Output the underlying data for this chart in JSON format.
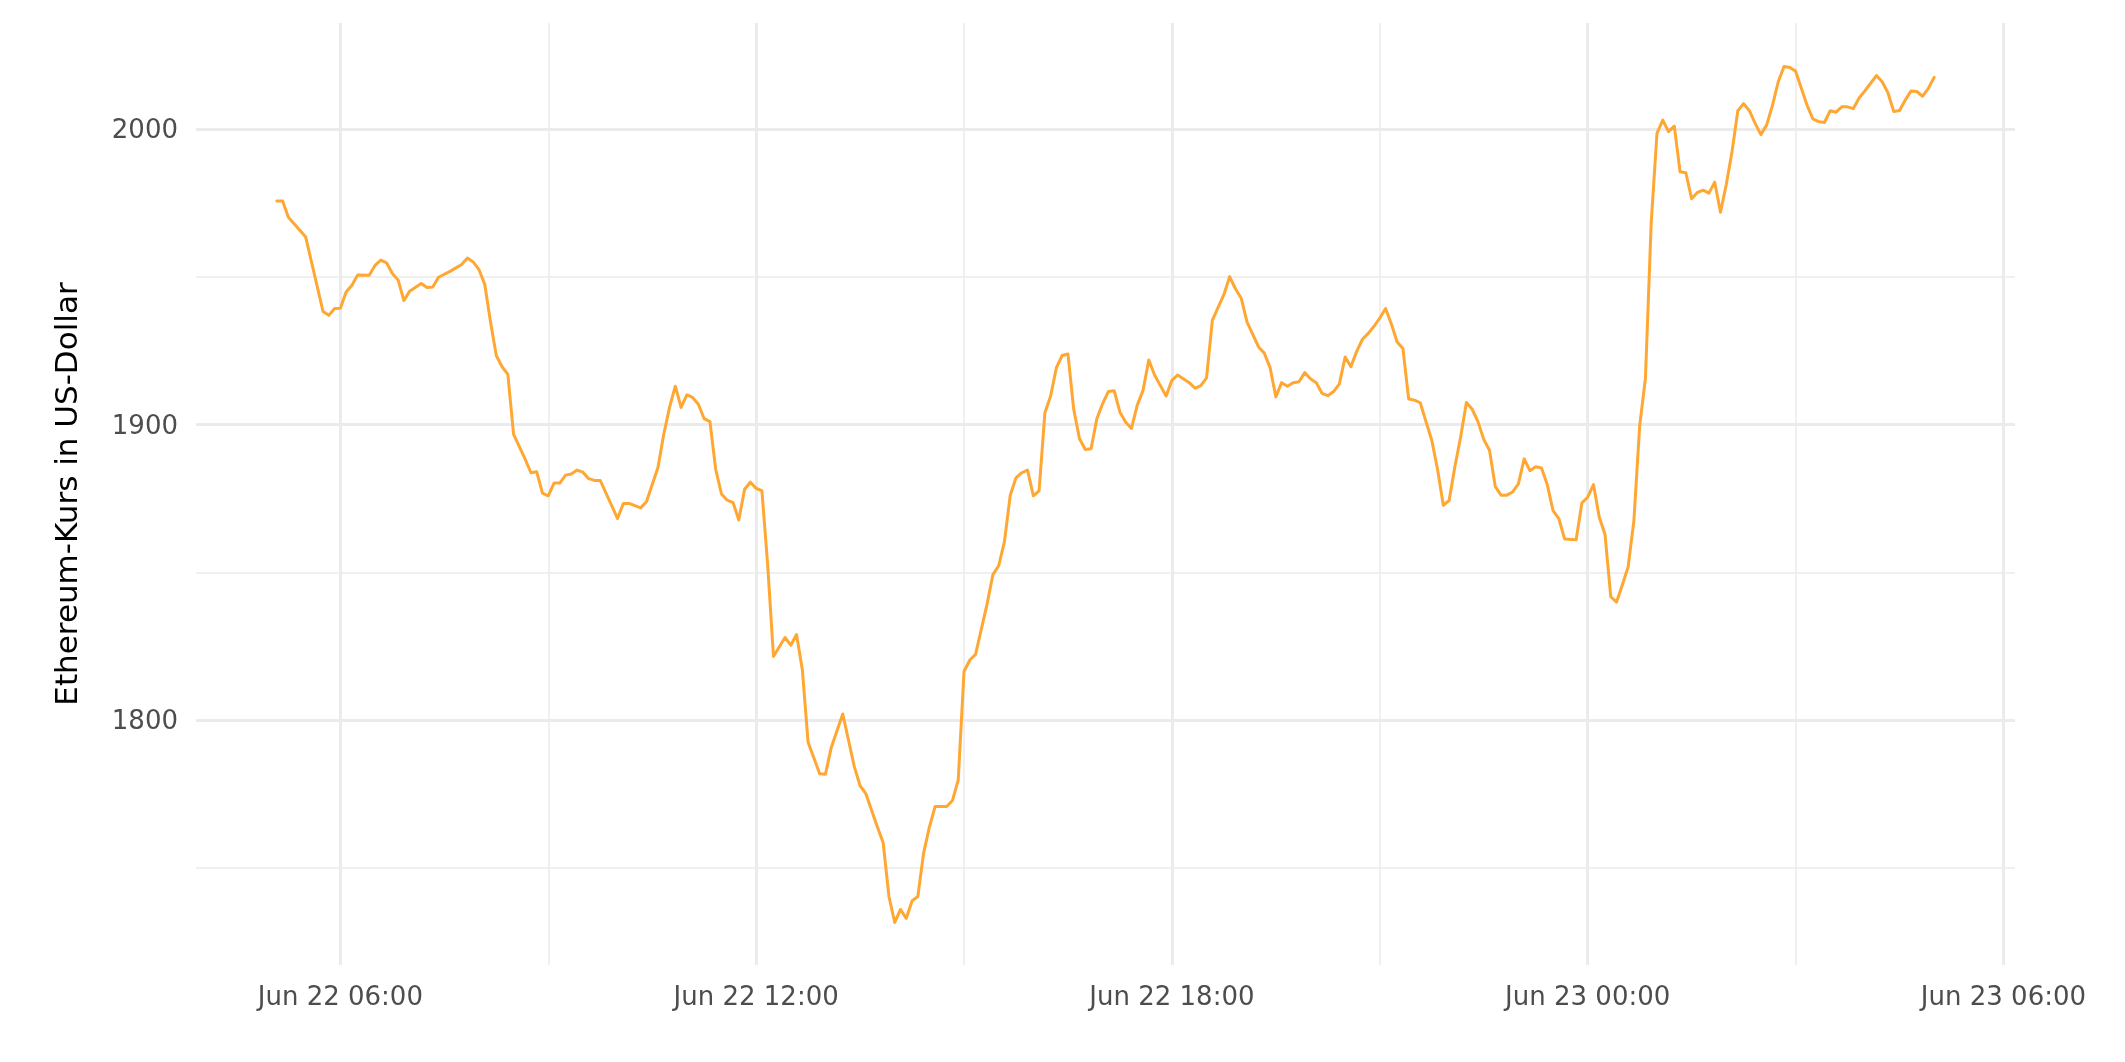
{
  "chart_data": {
    "type": "line",
    "ylabel": "Ethereum-Kurs in US-Dollar",
    "xlim": [
      "--06-22T03:55",
      "--06-23T06:10"
    ],
    "xticks": [
      {
        "value": "--06-22T06:00",
        "label": "Jun 22 06:00"
      },
      {
        "value": "--06-22T09:00",
        "label": null
      },
      {
        "value": "--06-22T12:00",
        "label": "Jun 22 12:00"
      },
      {
        "value": "--06-22T15:00",
        "label": null
      },
      {
        "value": "--06-22T18:00",
        "label": "Jun 22 18:00"
      },
      {
        "value": "--06-22T21:00",
        "label": null
      },
      {
        "value": "--06-23T00:00",
        "label": "Jun 23 00:00"
      },
      {
        "value": "--06-23T03:00",
        "label": null
      },
      {
        "value": "--06-23T06:00",
        "label": "Jun 23 06:00"
      }
    ],
    "ylim": [
      1717,
      2036
    ],
    "yticks": [
      {
        "value": 1750,
        "label": null
      },
      1800,
      {
        "value": 1850,
        "label": null
      },
      1900,
      {
        "value": 1950,
        "label": null
      },
      2000
    ],
    "grid": true,
    "marker": "none",
    "line_style": "solid",
    "series": [
      {
        "color": "#ffa733",
        "x": [
          "--06-22T05:05",
          "--06-22T05:10",
          "--06-22T05:15",
          "--06-22T05:30",
          "--06-22T05:45",
          "--06-22T05:50",
          "--06-22T05:55",
          "--06-22T06:00",
          "--06-22T06:05",
          "--06-22T06:10",
          "--06-22T06:15",
          "--06-22T06:25",
          "--06-22T06:30",
          "--06-22T06:35",
          "--06-22T06:40",
          "--06-22T06:45",
          "--06-22T06:50",
          "--06-22T06:55",
          "--06-22T07:00",
          "--06-22T07:10",
          "--06-22T07:15",
          "--06-22T07:20",
          "--06-22T07:25",
          "--06-22T07:35",
          "--06-22T07:45",
          "--06-22T07:50",
          "--06-22T07:55",
          "--06-22T08:00",
          "--06-22T08:05",
          "--06-22T08:10",
          "--06-22T08:15",
          "--06-22T08:20",
          "--06-22T08:25",
          "--06-22T08:30",
          "--06-22T08:40",
          "--06-22T08:45",
          "--06-22T08:50",
          "--06-22T08:55",
          "--06-22T09:00",
          "--06-22T09:05",
          "--06-22T09:10",
          "--06-22T09:15",
          "--06-22T09:20",
          "--06-22T09:25",
          "--06-22T09:30",
          "--06-22T09:35",
          "--06-22T09:40",
          "--06-22T09:45",
          "--06-22T10:00",
          "--06-22T10:05",
          "--06-22T10:10",
          "--06-22T10:20",
          "--06-22T10:25",
          "--06-22T10:35",
          "--06-22T10:40",
          "--06-22T10:45",
          "--06-22T10:50",
          "--06-22T10:55",
          "--06-22T11:00",
          "--06-22T11:05",
          "--06-22T11:10",
          "--06-22T11:15",
          "--06-22T11:20",
          "--06-22T11:25",
          "--06-22T11:30",
          "--06-22T11:35",
          "--06-22T11:40",
          "--06-22T11:45",
          "--06-22T11:50",
          "--06-22T11:55",
          "--06-22T12:00",
          "--06-22T12:05",
          "--06-22T12:10",
          "--06-22T12:15",
          "--06-22T12:25",
          "--06-22T12:30",
          "--06-22T12:35",
          "--06-22T12:40",
          "--06-22T12:45",
          "--06-22T12:55",
          "--06-22T13:00",
          "--06-22T13:05",
          "--06-22T13:15",
          "--06-22T13:25",
          "--06-22T13:30",
          "--06-22T13:35",
          "--06-22T13:45",
          "--06-22T13:50",
          "--06-22T13:55",
          "--06-22T14:00",
          "--06-22T14:05",
          "--06-22T14:10",
          "--06-22T14:15",
          "--06-22T14:20",
          "--06-22T14:25",
          "--06-22T14:30",
          "--06-22T14:35",
          "--06-22T14:45",
          "--06-22T14:50",
          "--06-22T14:55",
          "--06-22T15:00",
          "--06-22T15:05",
          "--06-22T15:10",
          "--06-22T15:20",
          "--06-22T15:25",
          "--06-22T15:30",
          "--06-22T15:35",
          "--06-22T15:40",
          "--06-22T15:45",
          "--06-22T15:50",
          "--06-22T15:55",
          "--06-22T16:00",
          "--06-22T16:05",
          "--06-22T16:10",
          "--06-22T16:15",
          "--06-22T16:20",
          "--06-22T16:25",
          "--06-22T16:30",
          "--06-22T16:35",
          "--06-22T16:40",
          "--06-22T16:45",
          "--06-22T16:50",
          "--06-22T16:55",
          "--06-22T17:00",
          "--06-22T17:05",
          "--06-22T17:10",
          "--06-22T17:15",
          "--06-22T17:20",
          "--06-22T17:25",
          "--06-22T17:30",
          "--06-22T17:35",
          "--06-22T17:40",
          "--06-22T17:45",
          "--06-22T17:50",
          "--06-22T17:55",
          "--06-22T18:00",
          "--06-22T18:05",
          "--06-22T18:15",
          "--06-22T18:20",
          "--06-22T18:25",
          "--06-22T18:30",
          "--06-22T18:35",
          "--06-22T18:40",
          "--06-22T18:45",
          "--06-22T18:50",
          "--06-22T18:55",
          "--06-22T19:00",
          "--06-22T19:05",
          "--06-22T19:15",
          "--06-22T19:20",
          "--06-22T19:25",
          "--06-22T19:30",
          "--06-22T19:35",
          "--06-22T19:40",
          "--06-22T19:45",
          "--06-22T19:50",
          "--06-22T19:55",
          "--06-22T20:00",
          "--06-22T20:05",
          "--06-22T20:10",
          "--06-22T20:15",
          "--06-22T20:20",
          "--06-22T20:25",
          "--06-22T20:30",
          "--06-22T20:35",
          "--06-22T20:40",
          "--06-22T20:45",
          "--06-22T20:50",
          "--06-22T20:55",
          "--06-22T21:00",
          "--06-22T21:05",
          "--06-22T21:10",
          "--06-22T21:15",
          "--06-22T21:20",
          "--06-22T21:25",
          "--06-22T21:30",
          "--06-22T21:35",
          "--06-22T21:40",
          "--06-22T21:45",
          "--06-22T21:50",
          "--06-22T21:55",
          "--06-22T22:00",
          "--06-22T22:05",
          "--06-22T22:10",
          "--06-22T22:15",
          "--06-22T22:20",
          "--06-22T22:25",
          "--06-22T22:30",
          "--06-22T22:35",
          "--06-22T22:40",
          "--06-22T22:45",
          "--06-22T22:50",
          "--06-22T22:55",
          "--06-22T23:00",
          "--06-22T23:05",
          "--06-22T23:10",
          "--06-22T23:15",
          "--06-22T23:20",
          "--06-22T23:25",
          "--06-22T23:30",
          "--06-22T23:35",
          "--06-22T23:40",
          "--06-22T23:50",
          "--06-22T23:55",
          "--06-23T00:00",
          "--06-23T00:05",
          "--06-23T00:10",
          "--06-23T00:15",
          "--06-23T00:20",
          "--06-23T00:25",
          "--06-23T00:30",
          "--06-23T00:35",
          "--06-23T00:40",
          "--06-23T00:45",
          "--06-23T00:50",
          "--06-23T00:55",
          "--06-23T01:00",
          "--06-23T01:05",
          "--06-23T01:10",
          "--06-23T01:15",
          "--06-23T01:20",
          "--06-23T01:25",
          "--06-23T01:30",
          "--06-23T01:35",
          "--06-23T01:40",
          "--06-23T01:45",
          "--06-23T01:50",
          "--06-23T01:55",
          "--06-23T02:00",
          "--06-23T02:05",
          "--06-23T02:10",
          "--06-23T02:15",
          "--06-23T02:20",
          "--06-23T02:25",
          "--06-23T02:30",
          "--06-23T02:35",
          "--06-23T02:40",
          "--06-23T02:45",
          "--06-23T02:50",
          "--06-23T02:55",
          "--06-23T03:00",
          "--06-23T03:05",
          "--06-23T03:10",
          "--06-23T03:15",
          "--06-23T03:20",
          "--06-23T03:25",
          "--06-23T03:30",
          "--06-23T03:35",
          "--06-23T03:40",
          "--06-23T03:45",
          "--06-23T03:50",
          "--06-23T03:55",
          "--06-23T04:00",
          "--06-23T04:05",
          "--06-23T04:10",
          "--06-23T04:15",
          "--06-23T04:20",
          "--06-23T04:25",
          "--06-23T04:30",
          "--06-23T04:35",
          "--06-23T04:40",
          "--06-23T04:45",
          "--06-23T04:50",
          "--06-23T04:55",
          "--06-23T05:00"
        ],
        "values": [
          1975.7,
          1975.7,
          1970.2,
          1963.5,
          1938.3,
          1937.0,
          1939.3,
          1939.4,
          1944.9,
          1947.2,
          1950.7,
          1950.6,
          1953.9,
          1955.7,
          1954.8,
          1951.2,
          1949.0,
          1942.0,
          1945.2,
          1947.8,
          1946.4,
          1946.6,
          1949.9,
          1951.9,
          1954.2,
          1956.4,
          1955.1,
          1952.5,
          1947.5,
          1934.8,
          1923.4,
          1919.6,
          1917.0,
          1896.7,
          1888.3,
          1883.7,
          1884.0,
          1876.8,
          1875.9,
          1880.2,
          1880.2,
          1882.9,
          1883.3,
          1884.6,
          1883.9,
          1881.7,
          1881.1,
          1881.1,
          1868.2,
          1873.3,
          1873.3,
          1871.8,
          1873.9,
          1885.5,
          1896.7,
          1905.8,
          1913.0,
          1905.8,
          1910.1,
          1909.2,
          1906.9,
          1902.0,
          1901.0,
          1884.8,
          1876.5,
          1874.4,
          1873.6,
          1867.7,
          1878.1,
          1880.5,
          1878.4,
          1877.6,
          1852.4,
          1821.5,
          1827.9,
          1825.3,
          1828.9,
          1817.0,
          1792.4,
          1781.8,
          1781.6,
          1790.6,
          1802.0,
          1784.2,
          1777.7,
          1775.0,
          1763.7,
          1758.4,
          1740.2,
          1731.4,
          1735.8,
          1732.8,
          1738.7,
          1740.2,
          1754.9,
          1763.7,
          1770.7,
          1770.7,
          1772.7,
          1779.7,
          1816.4,
          1820.3,
          1822.2,
          1839.3,
          1849.2,
          1852.2,
          1860.4,
          1876.0,
          1882.0,
          1883.7,
          1884.6,
          1875.9,
          1877.6,
          1903.9,
          1909.7,
          1919.3,
          1923.4,
          1923.9,
          1905.1,
          1895.2,
          1891.6,
          1891.8,
          1902.0,
          1907.1,
          1911.2,
          1911.5,
          1904.2,
          1900.8,
          1898.7,
          1906.6,
          1911.6,
          1921.9,
          1916.8,
          1913.2,
          1909.7,
          1915.0,
          1916.8,
          1914.2,
          1912.3,
          1913.2,
          1915.8,
          1935.3,
          1939.7,
          1944.0,
          1950.1,
          1946.0,
          1942.8,
          1934.8,
          1926.3,
          1924.2,
          1919.3,
          1909.4,
          1914.2,
          1913.0,
          1914.2,
          1914.5,
          1917.6,
          1915.5,
          1914.2,
          1910.6,
          1909.8,
          1911.2,
          1913.8,
          1922.9,
          1919.6,
          1924.8,
          1928.9,
          1930.9,
          1933.3,
          1936.1,
          1939.3,
          1934.1,
          1928.0,
          1925.8,
          1908.7,
          1908.3,
          1907.4,
          1901.0,
          1894.7,
          1884.9,
          1872.7,
          1874.3,
          1885.7,
          1895.8,
          1907.5,
          1905.2,
          1901.0,
          1895.0,
          1891.3,
          1879.0,
          1876.1,
          1876.1,
          1877.2,
          1879.9,
          1888.4,
          1884.4,
          1885.7,
          1885.3,
          1879.7,
          1870.9,
          1868.2,
          1861.3,
          1861.0,
          1873.5,
          1875.4,
          1879.7,
          1868.7,
          1862.8,
          1841.7,
          1839.9,
          1845.7,
          1851.8,
          1867.4,
          1899.5,
          1915.6,
          1968.3,
          1998.6,
          2003.1,
          1999.2,
          2001.1,
          1985.6,
          1985.3,
          1976.5,
          1978.6,
          1979.4,
          1978.4,
          1982.1,
          1971.9,
          1981.3,
          1992.5,
          2006.3,
          2008.7,
          2006.3,
          2002.0,
          1998.2,
          2001.5,
          2008.1,
          2016.1,
          2021.3,
          2020.9,
          2019.7,
          2013.9,
          2008.1,
          2003.5,
          2002.6,
          2002.3,
          2006.3,
          2005.8,
          2007.6,
          2007.6,
          2007.0,
          2010.6,
          2013.0,
          2015.6,
          2018.2,
          2016.1,
          2012.4,
          2006.0,
          2006.4,
          2009.9,
          2013.0,
          2012.8,
          2011.2,
          2013.9,
          2017.6
        ]
      }
    ]
  }
}
